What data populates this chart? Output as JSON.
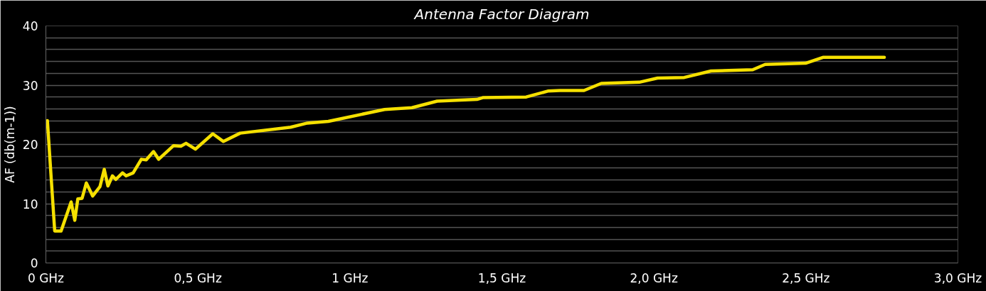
{
  "chart_data": {
    "type": "line",
    "title": "Antenna Factor Diagram",
    "ylabel": "AF (db(m-1))",
    "x": [
      0.005,
      0.029,
      0.05,
      0.083,
      0.095,
      0.105,
      0.119,
      0.133,
      0.154,
      0.178,
      0.192,
      0.204,
      0.219,
      0.23,
      0.252,
      0.264,
      0.287,
      0.314,
      0.33,
      0.354,
      0.371,
      0.42,
      0.444,
      0.461,
      0.492,
      0.549,
      0.584,
      0.639,
      0.805,
      0.86,
      0.929,
      1.114,
      1.204,
      1.287,
      1.418,
      1.437,
      1.58,
      1.651,
      1.691,
      1.77,
      1.827,
      1.952,
      2.012,
      2.1,
      2.188,
      2.325,
      2.366,
      2.499,
      2.556,
      2.758
    ],
    "series": [
      {
        "color": "#f5e000",
        "values": [
          24.0,
          5.4,
          5.4,
          10.3,
          7.2,
          10.8,
          10.9,
          13.5,
          11.3,
          12.9,
          15.8,
          13.0,
          14.7,
          14.1,
          15.2,
          14.7,
          15.2,
          17.5,
          17.4,
          18.8,
          17.5,
          19.8,
          19.7,
          20.2,
          19.2,
          21.8,
          20.5,
          21.9,
          22.9,
          23.6,
          23.9,
          25.9,
          26.2,
          27.3,
          27.6,
          27.9,
          28.0,
          29.0,
          29.1,
          29.1,
          30.3,
          30.5,
          31.2,
          31.3,
          32.4,
          32.6,
          33.5,
          33.7,
          34.7,
          34.7
        ]
      }
    ],
    "xlim": [
      0,
      3.0
    ],
    "xticks": [
      {
        "value": 0,
        "label": "0 GHz"
      },
      {
        "value": 0.5,
        "label": "0,5 GHz"
      },
      {
        "value": 1,
        "label": "1 GHz"
      },
      {
        "value": 1.5,
        "label": "1,5 GHz"
      },
      {
        "value": 2.0,
        "label": "2,0 GHz"
      },
      {
        "value": 2.5,
        "label": "2,5 GHz"
      },
      {
        "value": 3.0,
        "label": "3,0 GHz"
      }
    ],
    "ylim": [
      0,
      40
    ],
    "yticks": [
      0,
      {
        "value": 2,
        "label": null
      },
      {
        "value": 4,
        "label": null
      },
      {
        "value": 6,
        "label": null
      },
      {
        "value": 8,
        "label": null
      },
      10,
      {
        "value": 12,
        "label": null
      },
      {
        "value": 14,
        "label": null
      },
      {
        "value": 16,
        "label": null
      },
      {
        "value": 18,
        "label": null
      },
      20,
      {
        "value": 22,
        "label": null
      },
      {
        "value": 24,
        "label": null
      },
      {
        "value": 26,
        "label": null
      },
      {
        "value": 28,
        "label": null
      },
      30,
      {
        "value": 32,
        "label": null
      },
      {
        "value": 34,
        "label": null
      },
      {
        "value": 36,
        "label": null
      },
      {
        "value": 38,
        "label": null
      },
      40
    ],
    "grid": "y",
    "marker": "none",
    "line_style": "solid"
  }
}
